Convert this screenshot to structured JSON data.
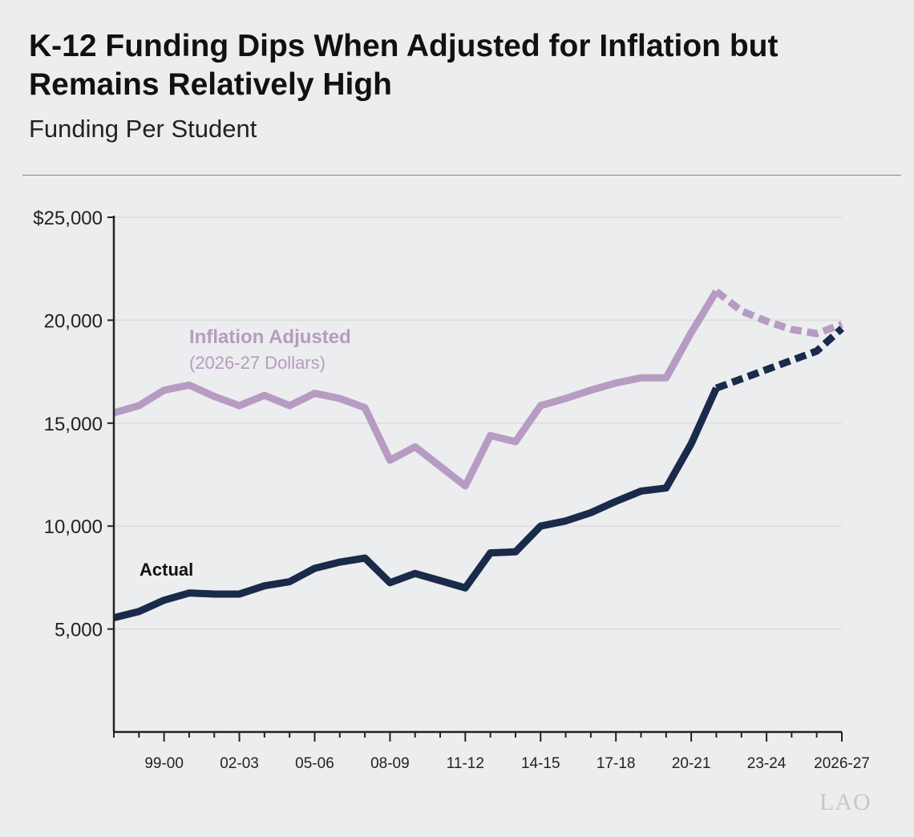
{
  "title": "K-12 Funding Dips When Adjusted for Inflation but Remains Relatively High",
  "subtitle": "Funding Per Student",
  "logo_text": "LAO",
  "colors": {
    "inflation_adjusted": "#b69bc2",
    "actual": "#1a2a4a",
    "axis": "#222222",
    "grid": "#dcdcdc",
    "background": "#ecedee"
  },
  "chart_data": {
    "type": "line",
    "title": "K-12 Funding Dips When Adjusted for Inflation but Remains Relatively High",
    "subtitle": "Funding Per Student",
    "ylim": [
      0,
      25000
    ],
    "yticks": [
      {
        "value": 5000,
        "label": "5,000"
      },
      {
        "value": 10000,
        "label": "10,000"
      },
      {
        "value": 15000,
        "label": "15,000"
      },
      {
        "value": 20000,
        "label": "20,000"
      },
      {
        "value": 25000,
        "label": "$25,000"
      }
    ],
    "grid": true,
    "x": [
      "97-98",
      "98-99",
      "99-00",
      "00-01",
      "01-02",
      "02-03",
      "03-04",
      "04-05",
      "05-06",
      "06-07",
      "07-08",
      "08-09",
      "09-10",
      "10-11",
      "11-12",
      "12-13",
      "13-14",
      "14-15",
      "15-16",
      "16-17",
      "17-18",
      "18-19",
      "19-20",
      "20-21",
      "21-22",
      "22-23",
      "23-24",
      "24-25",
      "25-26",
      "2026-27"
    ],
    "xtick_labels": [
      "99-00",
      "02-03",
      "05-06",
      "08-09",
      "11-12",
      "14-15",
      "17-18",
      "20-21",
      "23-24",
      "2026-27"
    ],
    "projected_from": "21-22",
    "series": [
      {
        "name": "Inflation Adjusted",
        "note": "(2026-27 Dollars)",
        "values": [
          15500,
          15850,
          16600,
          16850,
          16300,
          15850,
          16350,
          15850,
          16450,
          16200,
          15750,
          13200,
          13850,
          12900,
          11950,
          14400,
          14100,
          15850,
          16200,
          16600,
          16950,
          17200,
          17200,
          19400,
          21400,
          20450,
          19950,
          19550,
          19350,
          19800
        ]
      },
      {
        "name": "Actual",
        "values": [
          5550,
          5850,
          6400,
          6750,
          6700,
          6700,
          7100,
          7300,
          7950,
          8250,
          8450,
          7250,
          7700,
          7350,
          7000,
          8700,
          8750,
          10000,
          10250,
          10650,
          11200,
          11700,
          11850,
          14000,
          16700,
          17150,
          17600,
          18050,
          18500,
          19600
        ]
      }
    ]
  }
}
